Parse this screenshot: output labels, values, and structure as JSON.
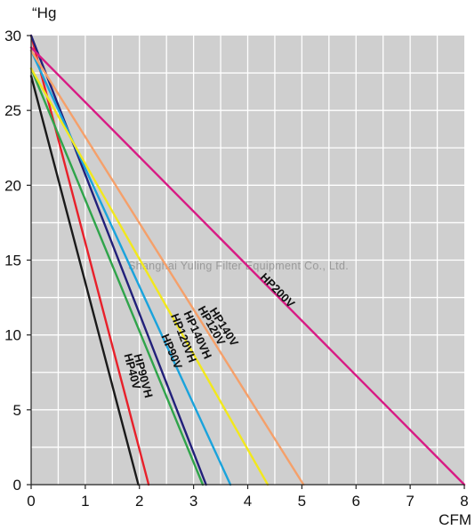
{
  "watermark": "Shanghai Yuling Filter Equipment Co., Ltd.",
  "chart_data": {
    "type": "line",
    "y_unit_label": "“Hg",
    "x_unit_label": "CFM",
    "xlim": [
      0,
      8
    ],
    "ylim": [
      0,
      30
    ],
    "x_ticks": [
      0,
      1,
      2,
      3,
      4,
      5,
      6,
      7,
      8
    ],
    "y_ticks": [
      0,
      5,
      10,
      15,
      20,
      25,
      30
    ],
    "grid": true,
    "legend": "labels placed directly on lines",
    "series": [
      {
        "name": "HP40V",
        "color": "#1a1a1a",
        "x": [
          0,
          1.98
        ],
        "y": [
          27.3,
          0
        ]
      },
      {
        "name": "HP90VH",
        "color": "#e8202a",
        "x": [
          0,
          2.17
        ],
        "y": [
          30.0,
          0
        ]
      },
      {
        "name": "HP90V",
        "color": "#2fa44a",
        "x": [
          0,
          3.17
        ],
        "y": [
          27.8,
          0
        ]
      },
      {
        "name": "HP120VH",
        "color": "#22207a",
        "x": [
          0,
          3.23
        ],
        "y": [
          30.0,
          0
        ]
      },
      {
        "name": "HP140VH",
        "color": "#1aa3dc",
        "x": [
          0,
          3.68
        ],
        "y": [
          29.0,
          0
        ]
      },
      {
        "name": "HP120V",
        "color": "#f2e81c",
        "x": [
          0,
          4.37
        ],
        "y": [
          27.8,
          0
        ]
      },
      {
        "name": "HP140V",
        "color": "#f5a06a",
        "x": [
          0,
          5.03
        ],
        "y": [
          29.0,
          0
        ]
      },
      {
        "name": "HP200V",
        "color": "#d81b84",
        "x": [
          0,
          8.0
        ],
        "y": [
          29.2,
          0
        ]
      }
    ],
    "label_positions": [
      {
        "name": "HP40V",
        "x": 1.8,
        "y": 7.5
      },
      {
        "name": "HP90VH",
        "x": 2.0,
        "y": 7.2
      },
      {
        "name": "HP90V",
        "x": 2.53,
        "y": 8.8
      },
      {
        "name": "HP120VH",
        "x": 2.75,
        "y": 9.7
      },
      {
        "name": "HP140VH",
        "x": 3.01,
        "y": 9.9
      },
      {
        "name": "HP120V",
        "x": 3.27,
        "y": 10.5
      },
      {
        "name": "HP140V",
        "x": 3.5,
        "y": 10.4
      },
      {
        "name": "HP200V",
        "x": 4.5,
        "y": 12.8
      }
    ]
  }
}
